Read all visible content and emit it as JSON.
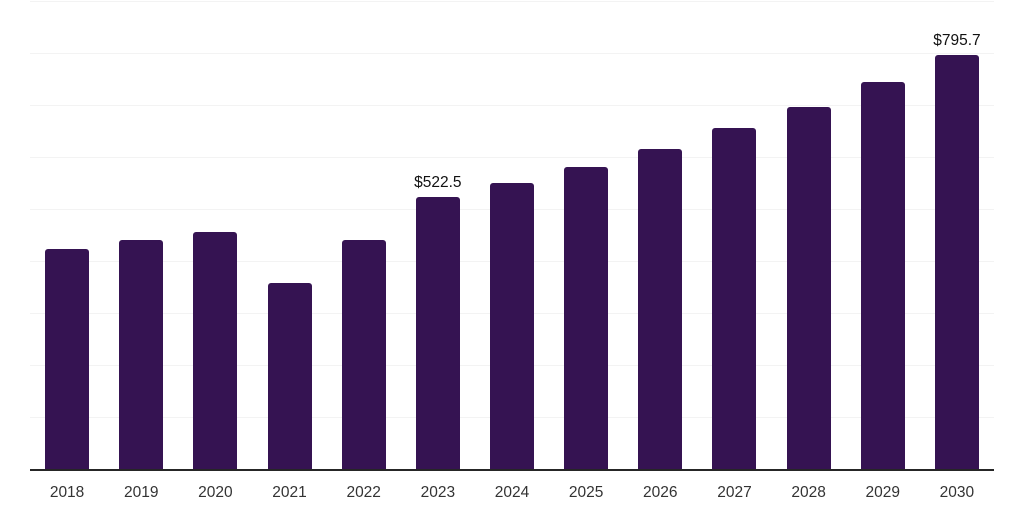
{
  "chart_data": {
    "type": "bar",
    "title": "",
    "xlabel": "",
    "ylabel": "",
    "categories": [
      "2018",
      "2019",
      "2020",
      "2021",
      "2022",
      "2023",
      "2024",
      "2025",
      "2026",
      "2027",
      "2028",
      "2029",
      "2030"
    ],
    "values": [
      422.5,
      440.4,
      456.4,
      357.1,
      440.4,
      522.5,
      550.0,
      580.2,
      614.8,
      655.2,
      695.6,
      744.9,
      795.7
    ],
    "data_labels": [
      {
        "category": "2023",
        "text": "$522.5"
      },
      {
        "category": "2030",
        "text": "$795.7"
      }
    ],
    "ylim": [
      0,
      900
    ],
    "gridline_step": 100,
    "grid": true,
    "legend": false,
    "y_tick_labels_visible": false,
    "colors": {
      "bar": "#351352",
      "gridline": "#f3f3f3",
      "axis_line": "#262626",
      "tick_label": "#333333",
      "data_label": "#111111",
      "background": "#ffffff"
    }
  }
}
